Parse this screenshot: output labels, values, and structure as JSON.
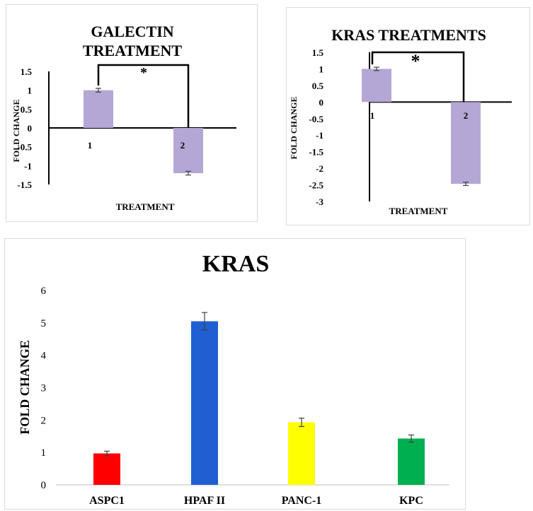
{
  "charts": [
    {
      "id": "p1",
      "chart_data": {
        "type": "bar",
        "title": "GALECTIN TREATMENT",
        "title_lines": [
          "GALECTIN",
          "TREATMENT"
        ],
        "xlabel": "TREATMENT",
        "ylabel": "FOLD CHANGE",
        "categories": [
          "1",
          "2"
        ],
        "values": [
          1.0,
          -1.2
        ],
        "errors": [
          0.05,
          0.05
        ],
        "ylim": [
          -1.5,
          1.5
        ],
        "yticks": [
          "1.5",
          "1",
          "0.5",
          "0",
          "-0.5",
          "-1",
          "-1.5"
        ],
        "bar_color": "#b4a7d6",
        "significance": "*",
        "grid": false,
        "legend": "none"
      }
    },
    {
      "id": "p2",
      "chart_data": {
        "type": "bar",
        "title": "KRAS TREATMENTS",
        "title_lines": [
          "KRAS TREATMENTS"
        ],
        "xlabel": "TREATMENT",
        "ylabel": "FOLD CHANGE",
        "categories": [
          "1",
          "2"
        ],
        "values": [
          1.0,
          -2.47
        ],
        "errors": [
          0.05,
          0.05
        ],
        "ylim": [
          -3,
          1.5
        ],
        "yticks": [
          "1.5",
          "1",
          "0.5",
          "0",
          "-0.5",
          "-1",
          "-1.5",
          "-2",
          "-2.5",
          "-3"
        ],
        "bar_color": "#b4a7d6",
        "significance": "*",
        "grid": false,
        "legend": "none"
      }
    },
    {
      "id": "p3",
      "chart_data": {
        "type": "bar",
        "title": "KRAS",
        "xlabel": "",
        "ylabel": "FOLD CHANGE",
        "categories": [
          "ASPC1",
          "HPAF II",
          "PANC-1",
          "KPC"
        ],
        "values": [
          0.97,
          5.05,
          1.93,
          1.43
        ],
        "errors": [
          0.07,
          0.27,
          0.13,
          0.11
        ],
        "colors": [
          "#ff0000",
          "#1f5fd1",
          "#ffff00",
          "#00b050"
        ],
        "ylim": [
          0,
          6
        ],
        "yticks": [
          "0",
          "1",
          "2",
          "3",
          "4",
          "5",
          "6"
        ],
        "grid": false,
        "legend": "none"
      }
    }
  ]
}
